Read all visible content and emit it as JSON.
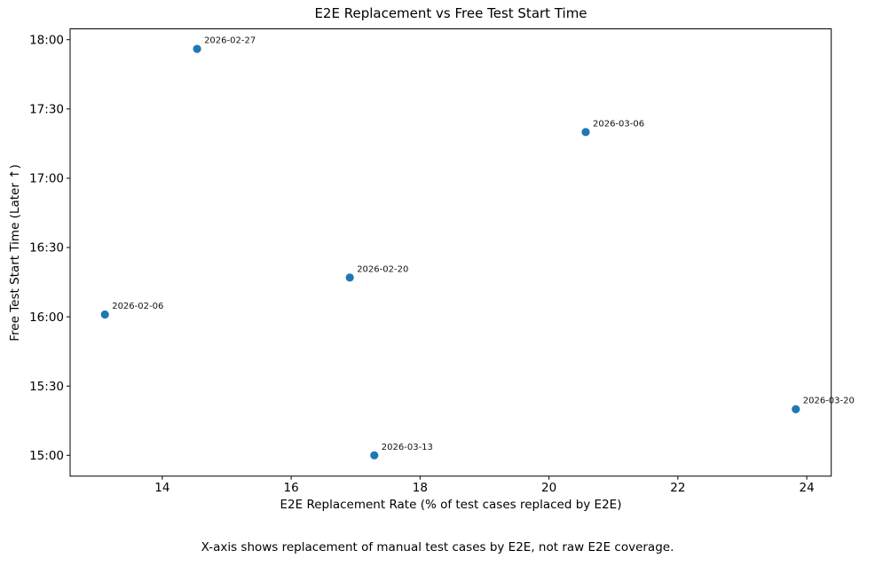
{
  "chart_data": {
    "type": "scatter",
    "title": "E2E Replacement vs Free Test Start Time",
    "xlabel": "E2E Replacement Rate (% of test cases replaced by E2E)",
    "ylabel": "Free Test Start Time (Later ↑)",
    "footnote": "X-axis shows replacement of manual test cases by E2E, not raw E2E coverage.",
    "marker_color": "#1f77b4",
    "grid": false,
    "legend": "none",
    "xlim": [
      12.57,
      24.38
    ],
    "ylim_minutes": [
      891,
      1084.7
    ],
    "x_ticks": [
      14,
      16,
      18,
      20,
      22,
      24
    ],
    "y_ticks": [
      "15:00",
      "15:30",
      "16:00",
      "16:30",
      "17:00",
      "17:30",
      "18:00"
    ],
    "points": [
      {
        "label": "2026-02-06",
        "x": 13.11,
        "time": "16:01"
      },
      {
        "label": "2026-02-20",
        "x": 16.91,
        "time": "16:17"
      },
      {
        "label": "2026-02-27",
        "x": 14.54,
        "time": "17:56"
      },
      {
        "label": "2026-03-06",
        "x": 20.57,
        "time": "17:20"
      },
      {
        "label": "2026-03-13",
        "x": 17.29,
        "time": "15:00"
      },
      {
        "label": "2026-03-20",
        "x": 23.83,
        "time": "15:20"
      }
    ]
  }
}
